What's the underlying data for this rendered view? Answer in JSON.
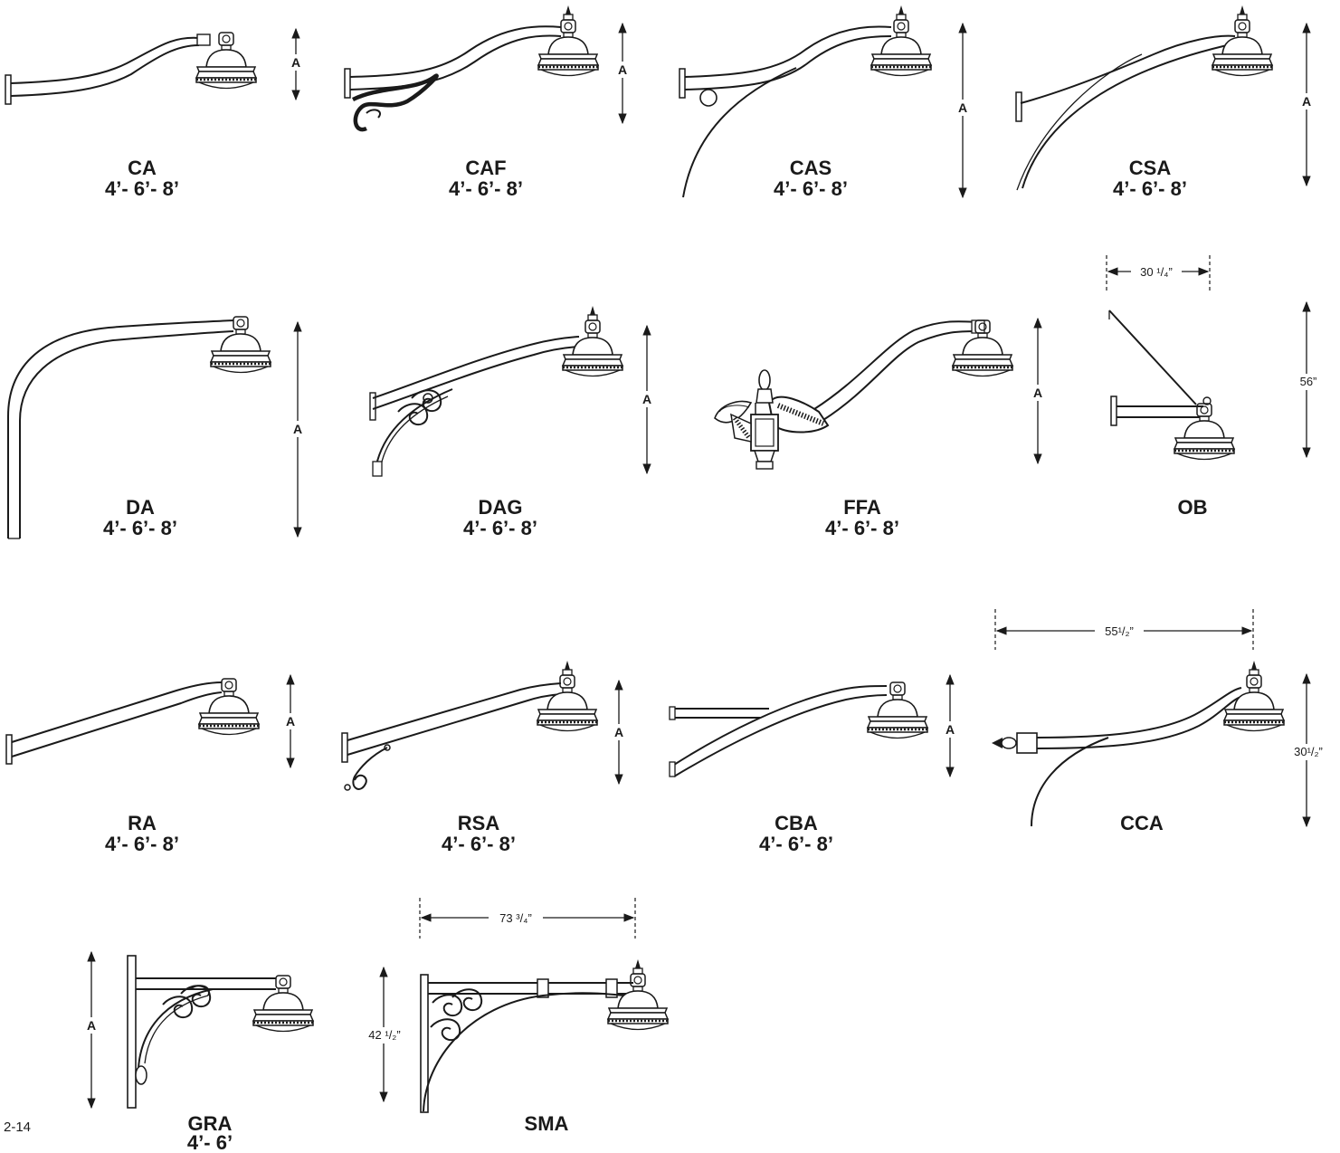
{
  "page_number": "2-14",
  "dim_a_label": "A",
  "arms": [
    {
      "code": "CA",
      "sizes": "4’- 6’- 8’"
    },
    {
      "code": "CAF",
      "sizes": "4’- 6’- 8’"
    },
    {
      "code": "CAS",
      "sizes": "4’- 6’- 8’"
    },
    {
      "code": "CSA",
      "sizes": "4’- 6’- 8’"
    },
    {
      "code": "DA",
      "sizes": "4’- 6’- 8’"
    },
    {
      "code": "DAG",
      "sizes": "4’- 6’- 8’"
    },
    {
      "code": "FFA",
      "sizes": "4’- 6’- 8’"
    },
    {
      "code": "OB",
      "sizes": ""
    },
    {
      "code": "RA",
      "sizes": "4’- 6’- 8’"
    },
    {
      "code": "RSA",
      "sizes": "4’- 6’- 8’"
    },
    {
      "code": "CBA",
      "sizes": "4’- 6’- 8’"
    },
    {
      "code": "CCA",
      "sizes": ""
    },
    {
      "code": "GRA",
      "sizes": "4’- 6’"
    },
    {
      "code": "SMA",
      "sizes": ""
    }
  ],
  "dimensions": {
    "ob_width": "30 ¹/₄”",
    "ob_height": "56”",
    "cca_width": "55¹/₂”",
    "cca_height": "30¹/₂”",
    "sma_width": "73 ³/₄”",
    "sma_height": "42 ¹/₂”"
  },
  "colors": {
    "ink": "#1a1a1a",
    "background": "#ffffff"
  }
}
